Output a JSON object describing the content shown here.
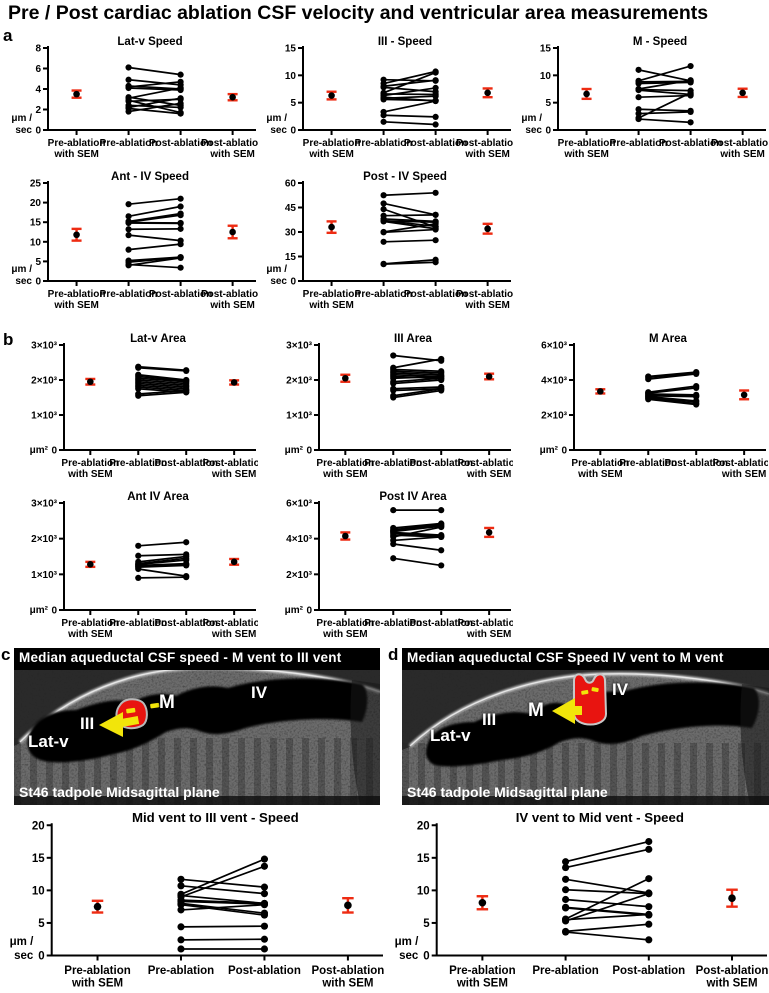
{
  "figure_title": "Pre / Post cardiac ablation CSF velocity and ventricular area measurements",
  "panel_labels": {
    "a": "a",
    "b": "b",
    "c": "c",
    "d": "d"
  },
  "colors": {
    "data_points": "#000000",
    "sem_marker": "#ee2b12",
    "roi_fill": "#e81410",
    "arrow": "#f2e50a",
    "image_text": "#ffffff"
  },
  "categories": [
    "Pre-ablation\nwith SEM",
    "Pre-ablation",
    "Post-ablation",
    "Post-ablation\nwith SEM"
  ],
  "images": {
    "c": {
      "header": "Median aqueductal CSF speed - M vent to III vent",
      "caption": "St46 tadpole Midsagittal plane",
      "labels": {
        "latv": "Lat-v",
        "iii": "III",
        "m": "M",
        "iv": "IV"
      }
    },
    "d": {
      "header": "Median aqueductal CSF Speed IV vent to M vent",
      "caption": "St46 tadpole Midsagittal plane",
      "labels": {
        "latv": "Lat-v",
        "iii": "III",
        "m": "M",
        "iv": "IV"
      }
    }
  },
  "chart_data": [
    {
      "key": "lat_v_speed",
      "panel": "a",
      "type": "paired-scatter",
      "title": "Lat-v Speed",
      "ylabel_lines": [
        "μm /",
        "sec"
      ],
      "ylim": [
        0,
        8
      ],
      "yticks": [
        {
          "v": 0,
          "label": "0"
        },
        {
          "v": 2,
          "label": "2"
        },
        {
          "v": 4,
          "label": "4"
        },
        {
          "v": 6,
          "label": "6"
        },
        {
          "v": 8,
          "label": "8"
        }
      ],
      "sem_pre": {
        "mean": 3.5,
        "sem": 0.35
      },
      "sem_post": {
        "mean": 3.2,
        "sem": 0.3
      },
      "pairs": [
        [
          6.1,
          5.4
        ],
        [
          4.9,
          4.4
        ],
        [
          4.3,
          4.0
        ],
        [
          4.2,
          4.7
        ],
        [
          4.1,
          3.9
        ],
        [
          3.2,
          2.4
        ],
        [
          3.1,
          4.1
        ],
        [
          2.9,
          1.7
        ],
        [
          2.8,
          3.0
        ],
        [
          2.4,
          2.2
        ],
        [
          2.2,
          3.1
        ],
        [
          2.1,
          1.6
        ],
        [
          1.8,
          2.6
        ]
      ]
    },
    {
      "key": "iii_speed",
      "panel": "a",
      "type": "paired-scatter",
      "title": "III -  Speed",
      "ylabel_lines": [
        "μm /",
        "sec"
      ],
      "ylim": [
        0,
        15
      ],
      "yticks": [
        {
          "v": 0,
          "label": "0"
        },
        {
          "v": 5,
          "label": "5"
        },
        {
          "v": 10,
          "label": "10"
        },
        {
          "v": 15,
          "label": "15"
        }
      ],
      "sem_pre": {
        "mean": 6.3,
        "sem": 0.7
      },
      "sem_post": {
        "mean": 6.8,
        "sem": 0.8
      },
      "pairs": [
        [
          9.2,
          9.0
        ],
        [
          8.5,
          10.7
        ],
        [
          8.0,
          9.1
        ],
        [
          7.8,
          7.0
        ],
        [
          6.8,
          10.5
        ],
        [
          6.6,
          6.5
        ],
        [
          6.3,
          7.7
        ],
        [
          6.0,
          5.3
        ],
        [
          5.8,
          6.2
        ],
        [
          5.6,
          5.4
        ],
        [
          3.3,
          5.3
        ],
        [
          2.7,
          2.4
        ],
        [
          1.5,
          1.0
        ]
      ]
    },
    {
      "key": "m_speed",
      "panel": "a",
      "type": "paired-scatter",
      "title": "M - Speed",
      "ylabel_lines": [
        "μm /",
        "sec"
      ],
      "ylim": [
        0,
        15
      ],
      "yticks": [
        {
          "v": 0,
          "label": "0"
        },
        {
          "v": 5,
          "label": "5"
        },
        {
          "v": 10,
          "label": "10"
        },
        {
          "v": 15,
          "label": "15"
        }
      ],
      "sem_pre": {
        "mean": 6.6,
        "sem": 0.9
      },
      "sem_post": {
        "mean": 6.8,
        "sem": 0.75
      },
      "pairs": [
        [
          11.0,
          9.0
        ],
        [
          9.0,
          11.7
        ],
        [
          8.8,
          8.9
        ],
        [
          8.5,
          8.7
        ],
        [
          7.5,
          9.1
        ],
        [
          7.4,
          7.2
        ],
        [
          7.3,
          6.5
        ],
        [
          6.0,
          6.3
        ],
        [
          3.8,
          3.5
        ],
        [
          3.0,
          3.3
        ],
        [
          2.2,
          6.8
        ],
        [
          2.0,
          1.4
        ]
      ]
    },
    {
      "key": "ant_iv_speed",
      "panel": "a",
      "type": "paired-scatter",
      "title": "Ant - IV Speed",
      "ylabel_lines": [
        "μm /",
        "sec"
      ],
      "ylim": [
        0,
        25
      ],
      "yticks": [
        {
          "v": 0,
          "label": "0"
        },
        {
          "v": 5,
          "label": "5"
        },
        {
          "v": 10,
          "label": "10"
        },
        {
          "v": 15,
          "label": "15"
        },
        {
          "v": 20,
          "label": "20"
        },
        {
          "v": 25,
          "label": "25"
        }
      ],
      "sem_pre": {
        "mean": 11.8,
        "sem": 1.5
      },
      "sem_post": {
        "mean": 12.5,
        "sem": 1.6
      },
      "pairs": [
        [
          19.6,
          21.0
        ],
        [
          16.5,
          19.0
        ],
        [
          15.2,
          17.2
        ],
        [
          15.0,
          16.8
        ],
        [
          14.9,
          14.8
        ],
        [
          14.8,
          14.7
        ],
        [
          13.2,
          13.3
        ],
        [
          11.7,
          10.3
        ],
        [
          8.0,
          9.4
        ],
        [
          5.2,
          6.1
        ],
        [
          4.8,
          6.0
        ],
        [
          4.2,
          3.4
        ],
        [
          4.0,
          5.9
        ]
      ]
    },
    {
      "key": "post_iv_speed",
      "panel": "a",
      "type": "paired-scatter",
      "title": "Post - IV Speed",
      "ylabel_lines": [
        "μm /",
        "sec"
      ],
      "ylim": [
        0,
        60
      ],
      "yticks": [
        {
          "v": 0,
          "label": "0"
        },
        {
          "v": 15,
          "label": "15"
        },
        {
          "v": 30,
          "label": "30"
        },
        {
          "v": 45,
          "label": "45"
        },
        {
          "v": 60,
          "label": "60"
        }
      ],
      "sem_pre": {
        "mean": 33,
        "sem": 3.5
      },
      "sem_post": {
        "mean": 32,
        "sem": 3
      },
      "pairs": [
        [
          52.5,
          54.0
        ],
        [
          47.5,
          40.5
        ],
        [
          44.0,
          33.0
        ],
        [
          40.0,
          40.5
        ],
        [
          38.0,
          36.5
        ],
        [
          37.0,
          33.5
        ],
        [
          36.8,
          36.0
        ],
        [
          36.5,
          32.0
        ],
        [
          30.0,
          35.0
        ],
        [
          29.8,
          31.5
        ],
        [
          24.0,
          25.0
        ],
        [
          10.5,
          13.0
        ],
        [
          10.3,
          11.5
        ]
      ]
    },
    {
      "key": "lat_v_area",
      "panel": "b",
      "type": "paired-scatter",
      "title": "Lat-v Area",
      "ylabel_lines": [
        "μm²"
      ],
      "ylim": [
        0,
        3000
      ],
      "yticks": [
        {
          "v": 0,
          "label": "0"
        },
        {
          "v": 1000,
          "label": "1×10³"
        },
        {
          "v": 2000,
          "label": "2×10³"
        },
        {
          "v": 3000,
          "label": "3×10³"
        }
      ],
      "sem_pre": {
        "mean": 1950,
        "sem": 80
      },
      "sem_post": {
        "mean": 1930,
        "sem": 60
      },
      "pairs": [
        [
          2380,
          2280
        ],
        [
          2350,
          2260
        ],
        [
          2150,
          2000
        ],
        [
          2100,
          1980
        ],
        [
          2050,
          1950
        ],
        [
          2000,
          1900
        ],
        [
          1950,
          1850
        ],
        [
          1900,
          1800
        ],
        [
          1850,
          1750
        ],
        [
          1800,
          1700
        ],
        [
          1750,
          1650
        ],
        [
          1600,
          1700
        ],
        [
          1550,
          1650
        ]
      ]
    },
    {
      "key": "iii_area",
      "panel": "b",
      "type": "paired-scatter",
      "title": "III Area",
      "ylabel_lines": [
        "μm²"
      ],
      "ylim": [
        0,
        3000
      ],
      "yticks": [
        {
          "v": 0,
          "label": "0"
        },
        {
          "v": 1000,
          "label": "1×10³"
        },
        {
          "v": 2000,
          "label": "2×10³"
        },
        {
          "v": 3000,
          "label": "3×10³"
        }
      ],
      "sem_pre": {
        "mean": 2050,
        "sem": 100
      },
      "sem_post": {
        "mean": 2100,
        "sem": 80
      },
      "pairs": [
        [
          2700,
          2550
        ],
        [
          2350,
          2600
        ],
        [
          2300,
          2250
        ],
        [
          2250,
          2200
        ],
        [
          2200,
          2150
        ],
        [
          2150,
          2100
        ],
        [
          2100,
          2050
        ],
        [
          2050,
          2100
        ],
        [
          1950,
          2050
        ],
        [
          1900,
          2000
        ],
        [
          1750,
          1800
        ],
        [
          1700,
          1750
        ],
        [
          1550,
          1750
        ],
        [
          1500,
          1700
        ]
      ]
    },
    {
      "key": "m_area",
      "panel": "b",
      "type": "paired-scatter",
      "title": "M Area",
      "ylabel_lines": [
        "μm²"
      ],
      "ylim": [
        0,
        6000
      ],
      "yticks": [
        {
          "v": 0,
          "label": "0"
        },
        {
          "v": 2000,
          "label": "2×10³"
        },
        {
          "v": 4000,
          "label": "4×10³"
        },
        {
          "v": 6000,
          "label": "6×10³"
        }
      ],
      "sem_pre": {
        "mean": 3350,
        "sem": 120
      },
      "sem_post": {
        "mean": 3150,
        "sem": 250
      },
      "pairs": [
        [
          4200,
          4450
        ],
        [
          4150,
          4400
        ],
        [
          4050,
          4350
        ],
        [
          3300,
          3650
        ],
        [
          3250,
          3550
        ],
        [
          3200,
          3150
        ],
        [
          3150,
          3100
        ],
        [
          3100,
          3050
        ],
        [
          3050,
          2800
        ],
        [
          3000,
          2750
        ],
        [
          2950,
          2650
        ],
        [
          2900,
          2600
        ]
      ]
    },
    {
      "key": "ant_iv_area",
      "panel": "b",
      "type": "paired-scatter",
      "title": "Ant IV Area",
      "ylabel_lines": [
        "μm²"
      ],
      "ylim": [
        0,
        3000
      ],
      "yticks": [
        {
          "v": 0,
          "label": "0"
        },
        {
          "v": 1000,
          "label": "1×10³"
        },
        {
          "v": 2000,
          "label": "2×10³"
        },
        {
          "v": 3000,
          "label": "3×10³"
        }
      ],
      "sem_pre": {
        "mean": 1280,
        "sem": 70
      },
      "sem_post": {
        "mean": 1350,
        "sem": 80
      },
      "pairs": [
        [
          1800,
          1900
        ],
        [
          1520,
          1560
        ],
        [
          1350,
          1500
        ],
        [
          1300,
          1450
        ],
        [
          1280,
          1400
        ],
        [
          1250,
          1300
        ],
        [
          1220,
          1280
        ],
        [
          1200,
          1250
        ],
        [
          1150,
          950
        ],
        [
          900,
          920
        ]
      ]
    },
    {
      "key": "post_iv_area",
      "panel": "b",
      "type": "paired-scatter",
      "title": "Post IV Area",
      "ylabel_lines": [
        "μm²"
      ],
      "ylim": [
        0,
        6000
      ],
      "yticks": [
        {
          "v": 0,
          "label": "0"
        },
        {
          "v": 2000,
          "label": "2×10³"
        },
        {
          "v": 4000,
          "label": "4×10³"
        },
        {
          "v": 6000,
          "label": "6×10³"
        }
      ],
      "sem_pre": {
        "mean": 4150,
        "sem": 200
      },
      "sem_post": {
        "mean": 4350,
        "sem": 250
      },
      "pairs": [
        [
          5600,
          5600
        ],
        [
          4600,
          4850
        ],
        [
          4500,
          4800
        ],
        [
          4450,
          4750
        ],
        [
          4400,
          4700
        ],
        [
          4350,
          4200
        ],
        [
          4300,
          4150
        ],
        [
          4200,
          4100
        ],
        [
          4100,
          4650
        ],
        [
          3900,
          4100
        ],
        [
          3700,
          3350
        ],
        [
          2900,
          2500
        ]
      ]
    },
    {
      "key": "mid_to_iii_speed",
      "panel": "c",
      "type": "paired-scatter",
      "title": "Mid vent to III vent -  Speed",
      "ylabel_lines": [
        "μm /",
        "sec"
      ],
      "ylim": [
        0,
        20
      ],
      "yticks": [
        {
          "v": 0,
          "label": "0"
        },
        {
          "v": 5,
          "label": "5"
        },
        {
          "v": 10,
          "label": "10"
        },
        {
          "v": 15,
          "label": "15"
        },
        {
          "v": 20,
          "label": "20"
        }
      ],
      "sem_pre": {
        "mean": 7.5,
        "sem": 0.9
      },
      "sem_post": {
        "mean": 7.7,
        "sem": 1.1
      },
      "pairs": [
        [
          11.7,
          10.5
        ],
        [
          10.7,
          9.5
        ],
        [
          9.4,
          14.8
        ],
        [
          9.2,
          8.0
        ],
        [
          9.0,
          13.7
        ],
        [
          8.5,
          8.0
        ],
        [
          8.3,
          7.9
        ],
        [
          8.0,
          6.5
        ],
        [
          7.8,
          6.2
        ],
        [
          7.0,
          7.8
        ],
        [
          4.4,
          4.5
        ],
        [
          2.4,
          2.5
        ],
        [
          1.0,
          1.0
        ]
      ]
    },
    {
      "key": "iv_to_mid_speed",
      "panel": "d",
      "type": "paired-scatter",
      "title": "IV vent to Mid vent -  Speed",
      "ylabel_lines": [
        "μm /",
        "sec"
      ],
      "ylim": [
        0,
        20
      ],
      "yticks": [
        {
          "v": 0,
          "label": "0"
        },
        {
          "v": 5,
          "label": "5"
        },
        {
          "v": 10,
          "label": "10"
        },
        {
          "v": 15,
          "label": "15"
        },
        {
          "v": 20,
          "label": "20"
        }
      ],
      "sem_pre": {
        "mean": 8.1,
        "sem": 1.0
      },
      "sem_post": {
        "mean": 8.8,
        "sem": 1.3
      },
      "pairs": [
        [
          14.4,
          17.5
        ],
        [
          13.5,
          16.3
        ],
        [
          11.7,
          9.6
        ],
        [
          10.1,
          9.5
        ],
        [
          8.6,
          7.5
        ],
        [
          7.4,
          6.3
        ],
        [
          7.3,
          6.2
        ],
        [
          5.6,
          11.8
        ],
        [
          5.5,
          6.3
        ],
        [
          5.3,
          9.5
        ],
        [
          3.7,
          4.8
        ],
        [
          3.6,
          2.4
        ]
      ]
    }
  ]
}
